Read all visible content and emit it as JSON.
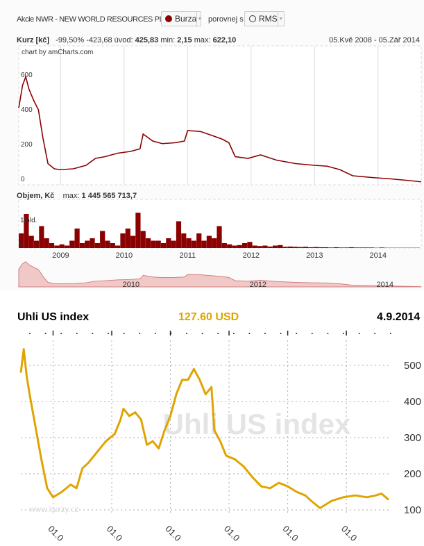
{
  "toolbar": {
    "title": "Akcie NWR - NEW WORLD RESOURCES PLC. trh",
    "market_label": "Burza",
    "compare_label": "porovnej s",
    "compare_value": "RMS"
  },
  "colors": {
    "nwr": "#8b0000",
    "coal": "#e0a400",
    "grid": "#dddddd"
  },
  "chart_data": [
    {
      "type": "line",
      "title": "Kurz [kč]",
      "stats": {
        "change_pct": "-99,50%",
        "change_abs": "-423,68",
        "start_label": "úvod:",
        "start": "425,83",
        "min_label": "min:",
        "min": "2,15",
        "max_label": "max:",
        "max": "622,10"
      },
      "date_range": "05.Kvě 2008 - 05.Zář 2014",
      "credit": "chart by amCharts.com",
      "ylim": [
        0,
        640
      ],
      "yticks": [
        "0",
        "200",
        "400",
        "600"
      ],
      "ytick_values": [
        0,
        200,
        400,
        600
      ],
      "xlim": [
        2008.34,
        2014.68
      ],
      "xticks": [
        "2009",
        "2010",
        "2011",
        "2012",
        "2013",
        "2014"
      ],
      "xtick_values": [
        2009,
        2010,
        2011,
        2012,
        2013,
        2014
      ],
      "x": [
        2008.34,
        2008.4,
        2008.45,
        2008.5,
        2008.58,
        2008.65,
        2008.72,
        2008.8,
        2008.9,
        2009.0,
        2009.2,
        2009.4,
        2009.55,
        2009.7,
        2009.9,
        2010.1,
        2010.25,
        2010.3,
        2010.45,
        2010.6,
        2010.8,
        2010.95,
        2011.0,
        2011.2,
        2011.4,
        2011.55,
        2011.65,
        2011.75,
        2011.95,
        2012.15,
        2012.4,
        2012.7,
        2013.0,
        2013.2,
        2013.4,
        2013.6,
        2013.9,
        2014.2,
        2014.5,
        2014.68
      ],
      "y": [
        430,
        560,
        610,
        540,
        470,
        420,
        260,
        110,
        80,
        75,
        80,
        100,
        140,
        150,
        170,
        180,
        195,
        280,
        240,
        225,
        230,
        240,
        300,
        295,
        270,
        250,
        230,
        150,
        140,
        160,
        130,
        110,
        100,
        95,
        75,
        40,
        30,
        22,
        12,
        5
      ]
    },
    {
      "type": "bar",
      "title": "Objem, Kč",
      "max_label": "max:",
      "max": "1 445 565 713,7",
      "ylim": [
        0,
        1.6
      ],
      "yticks": [
        "0",
        "1mld."
      ],
      "ytick_values": [
        0,
        1
      ],
      "unit": "mld. Kč",
      "x_start": 2008.34,
      "x_step": 0.08,
      "values": [
        0.6,
        1.4,
        0.5,
        0.3,
        0.9,
        0.4,
        0.2,
        0.1,
        0.15,
        0.1,
        0.3,
        0.8,
        0.2,
        0.3,
        0.4,
        0.2,
        0.7,
        0.3,
        0.2,
        0.1,
        0.6,
        0.8,
        0.5,
        1.45,
        0.7,
        0.4,
        0.3,
        0.3,
        0.2,
        0.4,
        0.3,
        1.1,
        0.6,
        0.4,
        0.3,
        0.6,
        0.3,
        0.5,
        0.4,
        0.9,
        0.2,
        0.15,
        0.1,
        0.12,
        0.2,
        0.25,
        0.1,
        0.08,
        0.1,
        0.06,
        0.1,
        0.12,
        0.05,
        0.06,
        0.05,
        0.04,
        0.05,
        0.03,
        0.04,
        0.03,
        0.03,
        0.02,
        0.03,
        0.02,
        0.02,
        0.03,
        0.02,
        0.02,
        0.02,
        0.02,
        0.01,
        0.02,
        0.01,
        0.01,
        0.01,
        0.01,
        0.01,
        0.01,
        0.01
      ]
    },
    {
      "type": "area",
      "title": "navigator",
      "xticks": [
        "2010",
        "2012",
        "2014"
      ],
      "xtick_values": [
        2010,
        2012,
        2014
      ]
    },
    {
      "type": "line",
      "title": "Uhli US index",
      "current_value": "127.60 USD",
      "date": "4.9.2014",
      "watermark": "Uhli US index",
      "source": "www.kurzy.cz",
      "ylim": [
        80,
        560
      ],
      "yticks": [
        "100",
        "200",
        "300",
        "400",
        "500"
      ],
      "ytick_values": [
        100,
        200,
        300,
        400,
        500
      ],
      "xlim": [
        2008.45,
        2014.72
      ],
      "xticks": [
        "01.0",
        "01.0",
        "01.0",
        "01.0",
        "01.0",
        "01.0"
      ],
      "xtick_values": [
        2009,
        2010,
        2011,
        2012,
        2013,
        2014
      ],
      "x": [
        2008.45,
        2008.5,
        2008.55,
        2008.6,
        2008.7,
        2008.8,
        2008.9,
        2009.0,
        2009.15,
        2009.3,
        2009.4,
        2009.5,
        2009.6,
        2009.75,
        2009.9,
        2010.05,
        2010.15,
        2010.2,
        2010.3,
        2010.4,
        2010.5,
        2010.6,
        2010.7,
        2010.8,
        2010.9,
        2011.0,
        2011.1,
        2011.2,
        2011.3,
        2011.4,
        2011.5,
        2011.6,
        2011.7,
        2011.75,
        2011.85,
        2011.95,
        2012.1,
        2012.25,
        2012.4,
        2012.55,
        2012.7,
        2012.85,
        2013.0,
        2013.15,
        2013.3,
        2013.4,
        2013.55,
        2013.75,
        2013.95,
        2014.15,
        2014.35,
        2014.5,
        2014.6,
        2014.72
      ],
      "y": [
        480,
        545,
        470,
        420,
        330,
        240,
        160,
        135,
        150,
        170,
        160,
        215,
        230,
        260,
        290,
        310,
        350,
        380,
        360,
        370,
        350,
        280,
        290,
        270,
        320,
        360,
        420,
        460,
        460,
        490,
        460,
        420,
        440,
        320,
        290,
        250,
        240,
        220,
        190,
        165,
        160,
        175,
        165,
        150,
        140,
        125,
        105,
        125,
        135,
        140,
        135,
        140,
        145,
        128
      ]
    }
  ]
}
